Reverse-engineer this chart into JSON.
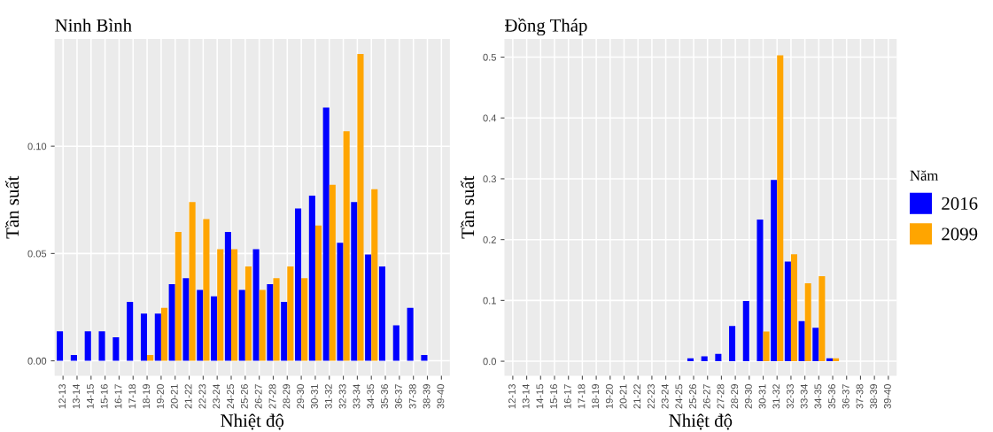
{
  "chart_data": [
    {
      "type": "bar",
      "title": "Ninh Bình",
      "xlabel": "Nhiệt độ",
      "ylabel": "Tần suất",
      "categories": [
        "12-13",
        "13-14",
        "14-15",
        "15-16",
        "16-17",
        "17-18",
        "18-19",
        "19-20",
        "20-21",
        "21-22",
        "22-23",
        "23-24",
        "24-25",
        "25-26",
        "26-27",
        "27-28",
        "28-29",
        "29-30",
        "30-31",
        "31-32",
        "32-33",
        "33-34",
        "34-35",
        "35-36",
        "36-37",
        "37-38",
        "38-39",
        "39-40"
      ],
      "series": [
        {
          "color": "#0000ff",
          "values": [
            0.0137,
            0.0027,
            0.0137,
            0.0137,
            0.011,
            0.0275,
            0.022,
            0.022,
            0.0357,
            0.0385,
            0.033,
            0.03,
            0.06,
            0.033,
            0.052,
            0.0357,
            0.0275,
            0.071,
            0.077,
            0.118,
            0.055,
            0.074,
            0.0495,
            0.044,
            0.0165,
            0.0247,
            0.0027,
            null
          ]
        },
        {
          "color": "#ffa500",
          "values": [
            null,
            null,
            null,
            null,
            null,
            null,
            0.0027,
            0.0247,
            0.06,
            0.074,
            0.066,
            0.052,
            0.052,
            0.044,
            0.033,
            0.0385,
            0.044,
            0.0385,
            0.063,
            0.082,
            0.107,
            0.143,
            0.08,
            null,
            null,
            null,
            null,
            null
          ]
        }
      ],
      "ylim": [
        -0.007,
        0.15
      ],
      "yticks": [
        {
          "value": 0,
          "label": "0.00"
        },
        {
          "value": 0.05,
          "label": "0.05"
        },
        {
          "value": 0.1,
          "label": "0.10"
        }
      ],
      "grid": true
    },
    {
      "type": "bar",
      "title": "Đồng Tháp",
      "xlabel": "Nhiệt độ",
      "ylabel": "Tần suất",
      "legend_title": "Năm",
      "categories": [
        "12-13",
        "13-14",
        "14-15",
        "15-16",
        "16-17",
        "17-18",
        "18-19",
        "19-20",
        "20-21",
        "21-22",
        "22-23",
        "23-24",
        "24-25",
        "25-26",
        "26-27",
        "27-28",
        "28-29",
        "29-30",
        "30-31",
        "31-32",
        "32-33",
        "33-34",
        "34-35",
        "35-36",
        "36-37",
        "37-38",
        "38-39",
        "39-40"
      ],
      "series": [
        {
          "name": "2016",
          "color": "#0000ff",
          "values": [
            null,
            null,
            null,
            null,
            null,
            null,
            null,
            null,
            null,
            null,
            null,
            null,
            null,
            0.005,
            0.008,
            0.012,
            0.058,
            0.099,
            0.233,
            0.298,
            0.164,
            0.066,
            0.055,
            0.005,
            null,
            null,
            null,
            null
          ]
        },
        {
          "name": "2099",
          "color": "#ffa500",
          "values": [
            null,
            null,
            null,
            null,
            null,
            null,
            null,
            null,
            null,
            null,
            null,
            null,
            null,
            null,
            null,
            null,
            null,
            null,
            0.049,
            0.503,
            0.176,
            0.128,
            0.14,
            0.005,
            null,
            null,
            null,
            null
          ]
        }
      ],
      "ylim": [
        -0.024,
        0.53
      ],
      "yticks": [
        {
          "value": 0,
          "label": "0.0"
        },
        {
          "value": 0.1,
          "label": "0.1"
        },
        {
          "value": 0.2,
          "label": "0.2"
        },
        {
          "value": 0.3,
          "label": "0.3"
        },
        {
          "value": 0.4,
          "label": "0.4"
        },
        {
          "value": 0.5,
          "label": "0.5"
        }
      ],
      "grid": true,
      "legend": "right"
    }
  ]
}
